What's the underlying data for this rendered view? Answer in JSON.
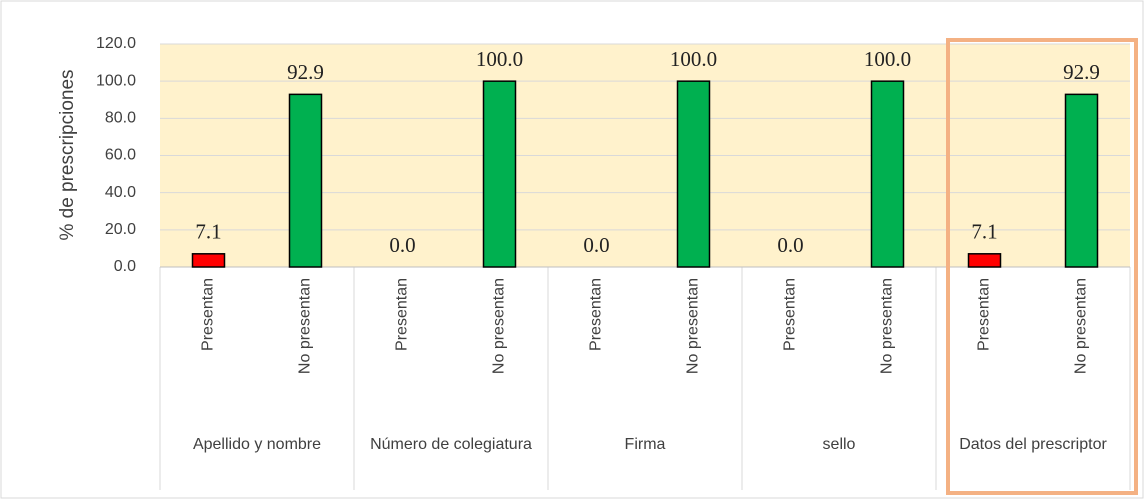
{
  "chart_data": {
    "type": "bar",
    "ylabel": "% de prescripciones",
    "categories": [
      "Apellido y nombre",
      "Número de colegiatura",
      "Firma",
      "sello",
      "Datos del prescriptor"
    ],
    "series": [
      {
        "name": "Presentan",
        "color": "#ff0000",
        "values": [
          7.1,
          0,
          0,
          0,
          7.1
        ],
        "value_labels": [
          "7.1",
          "0.0",
          "0.0",
          "0.0",
          "7.1"
        ]
      },
      {
        "name": "No presentan",
        "color": "#00b050",
        "values": [
          92.9,
          100,
          100,
          100,
          92.9
        ],
        "value_labels": [
          "92.9",
          "100.0",
          "100.0",
          "100.0",
          "92.9"
        ]
      }
    ],
    "ylim": [
      0,
      120
    ],
    "yticks": [
      {
        "value": 0,
        "label": "0.0"
      },
      {
        "value": 20,
        "label": "20.0"
      },
      {
        "value": 40,
        "label": "40.0"
      },
      {
        "value": 60,
        "label": "60.0"
      },
      {
        "value": 80,
        "label": "80.0"
      },
      {
        "value": 100,
        "label": "100.0"
      },
      {
        "value": 120,
        "label": "120.0"
      }
    ],
    "grid": true
  }
}
